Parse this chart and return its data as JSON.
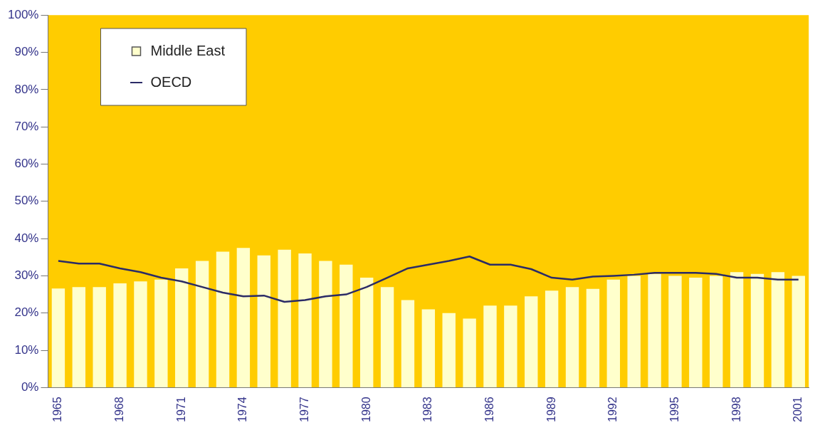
{
  "chart_data": {
    "type": "bar",
    "categories": [
      "1965",
      null,
      null,
      "1968",
      null,
      null,
      "1971",
      null,
      null,
      "1974",
      null,
      null,
      "1977",
      null,
      null,
      "1980",
      null,
      null,
      "1983",
      null,
      null,
      "1986",
      null,
      null,
      "1989",
      null,
      null,
      "1992",
      null,
      null,
      "1995",
      null,
      null,
      "1998",
      null,
      null,
      "2001"
    ],
    "series": [
      {
        "name": "Middle East",
        "color": "#ffffcc",
        "values": [
          26.6,
          27,
          27,
          28,
          28.5,
          29,
          32,
          34,
          36.5,
          37.5,
          35.5,
          37,
          36,
          34,
          33,
          29.5,
          27,
          23.5,
          21,
          20,
          18.5,
          22,
          22,
          24.5,
          26,
          27,
          26.5,
          29,
          30,
          30.5,
          30,
          29.5,
          30,
          31,
          30.5,
          31,
          30
        ]
      },
      {
        "name": "OECD",
        "type": "line",
        "color": "#2b2b66",
        "values": [
          34,
          33.3,
          33.3,
          32,
          31,
          29.5,
          28.5,
          27,
          25.5,
          24.5,
          24.7,
          23,
          23.5,
          24.5,
          25,
          27,
          29.5,
          32,
          33,
          34,
          35.2,
          33,
          33,
          31.8,
          29.5,
          29,
          29.8,
          30,
          30.3,
          30.8,
          30.8,
          30.8,
          30.5,
          29.5,
          29.5,
          29,
          29
        ]
      }
    ],
    "ylim": [
      0,
      100
    ],
    "yticks": [
      {
        "value": 0,
        "label": "0%"
      },
      {
        "value": 10,
        "label": "10%"
      },
      {
        "value": 20,
        "label": "20%"
      },
      {
        "value": 30,
        "label": "30%"
      },
      {
        "value": 40,
        "label": "40%"
      },
      {
        "value": 50,
        "label": "50%"
      },
      {
        "value": 60,
        "label": "60%"
      },
      {
        "value": 70,
        "label": "70%"
      },
      {
        "value": 80,
        "label": "80%"
      },
      {
        "value": 90,
        "label": "90%"
      },
      {
        "value": 100,
        "label": "100%"
      }
    ],
    "grid": false,
    "legend": "top left",
    "marker": "none",
    "line_style": "solid"
  }
}
